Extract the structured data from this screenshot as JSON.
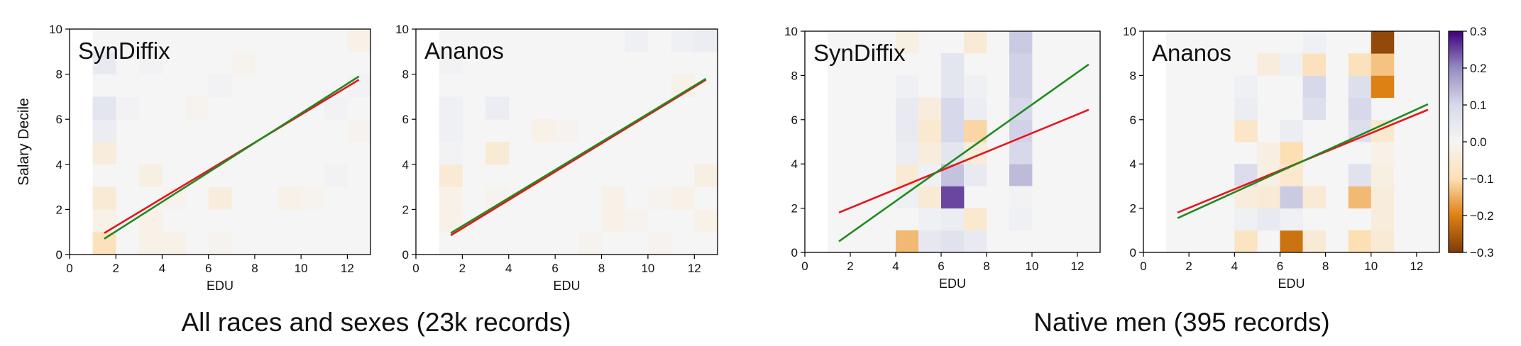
{
  "captions": {
    "left": "All races and sexes (23k records)",
    "right": "Native men (395 records)"
  },
  "colors": {
    "red_line": "#e8141c",
    "green_line": "#1f8a1f",
    "frame": "#000000"
  },
  "colorbar": {
    "cmap": "PuOr (brown=negative, purple=positive)",
    "min": -0.3,
    "max": 0.3,
    "ticks": [
      "0.3",
      "0.2",
      "0.1",
      "0.0",
      "−0.1",
      "−0.2",
      "−0.3"
    ],
    "tick_values": [
      0.3,
      0.2,
      0.1,
      0.0,
      -0.1,
      -0.2,
      -0.3
    ]
  },
  "chart_data": [
    {
      "type": "heatmap",
      "title": "SynDiffix",
      "group": "All races and sexes (23k records)",
      "xlabel": "EDU",
      "ylabel": "Salary Decile",
      "xlim": [
        0,
        13
      ],
      "ylim": [
        0,
        10
      ],
      "xticks": [
        "0",
        "2",
        "4",
        "6",
        "8",
        "10",
        "12"
      ],
      "yticks": [
        "0",
        "2",
        "4",
        "6",
        "8",
        "10"
      ],
      "cell_x_edges": [
        1,
        2,
        3,
        4,
        5,
        6,
        7,
        8,
        9,
        10,
        11,
        12,
        13
      ],
      "cells": [
        {
          "x": 1,
          "y": 0,
          "v": -0.09
        },
        {
          "x": 1,
          "y": 1,
          "v": -0.02
        },
        {
          "x": 1,
          "y": 2,
          "v": -0.05
        },
        {
          "x": 1,
          "y": 4,
          "v": -0.04
        },
        {
          "x": 1,
          "y": 5,
          "v": 0.03
        },
        {
          "x": 1,
          "y": 6,
          "v": 0.06
        },
        {
          "x": 1,
          "y": 8,
          "v": 0.04
        },
        {
          "x": 2,
          "y": 6,
          "v": 0.01
        },
        {
          "x": 3,
          "y": 0,
          "v": -0.02
        },
        {
          "x": 3,
          "y": 1,
          "v": -0.02
        },
        {
          "x": 3,
          "y": 3,
          "v": -0.03
        },
        {
          "x": 3,
          "y": 8,
          "v": 0.01
        },
        {
          "x": 4,
          "y": 0,
          "v": -0.02
        },
        {
          "x": 4,
          "y": 2,
          "v": -0.01
        },
        {
          "x": 5,
          "y": 6,
          "v": -0.01
        },
        {
          "x": 6,
          "y": 0,
          "v": -0.01
        },
        {
          "x": 6,
          "y": 2,
          "v": -0.04
        },
        {
          "x": 6,
          "y": 7,
          "v": 0.01
        },
        {
          "x": 7,
          "y": 8,
          "v": -0.01
        },
        {
          "x": 9,
          "y": 2,
          "v": -0.02
        },
        {
          "x": 10,
          "y": 2,
          "v": -0.01
        },
        {
          "x": 11,
          "y": 6,
          "v": 0.01
        },
        {
          "x": 11,
          "y": 3,
          "v": 0.01
        },
        {
          "x": 12,
          "y": 5,
          "v": -0.01
        },
        {
          "x": 12,
          "y": 9,
          "v": -0.02
        },
        {
          "x": 12,
          "y": 7,
          "v": 0.01
        }
      ],
      "lines": [
        {
          "color": "red",
          "x": [
            1.5,
            12.5
          ],
          "y": [
            0.95,
            7.75
          ]
        },
        {
          "color": "green",
          "x": [
            1.5,
            12.5
          ],
          "y": [
            0.7,
            7.9
          ]
        }
      ]
    },
    {
      "type": "heatmap",
      "title": "Ananos",
      "group": "All races and sexes (23k records)",
      "xlabel": "EDU",
      "ylabel": "",
      "xlim": [
        0,
        13
      ],
      "ylim": [
        0,
        10
      ],
      "xticks": [
        "0",
        "2",
        "4",
        "6",
        "8",
        "10",
        "12"
      ],
      "yticks": [
        "0",
        "2",
        "4",
        "6",
        "8",
        "10"
      ],
      "cells": [
        {
          "x": 1,
          "y": 1,
          "v": -0.02
        },
        {
          "x": 1,
          "y": 2,
          "v": -0.02
        },
        {
          "x": 1,
          "y": 3,
          "v": -0.05
        },
        {
          "x": 1,
          "y": 4,
          "v": 0.01
        },
        {
          "x": 1,
          "y": 5,
          "v": 0.02
        },
        {
          "x": 1,
          "y": 6,
          "v": 0.02
        },
        {
          "x": 1,
          "y": 8,
          "v": 0.01
        },
        {
          "x": 3,
          "y": 4,
          "v": -0.05
        },
        {
          "x": 3,
          "y": 6,
          "v": 0.03
        },
        {
          "x": 3,
          "y": 2,
          "v": -0.01
        },
        {
          "x": 5,
          "y": 5,
          "v": -0.02
        },
        {
          "x": 6,
          "y": 5,
          "v": -0.01
        },
        {
          "x": 7,
          "y": 0,
          "v": -0.01
        },
        {
          "x": 8,
          "y": 1,
          "v": -0.02
        },
        {
          "x": 8,
          "y": 2,
          "v": -0.02
        },
        {
          "x": 9,
          "y": 9,
          "v": 0.02
        },
        {
          "x": 9,
          "y": 1,
          "v": -0.01
        },
        {
          "x": 10,
          "y": 0,
          "v": -0.01
        },
        {
          "x": 10,
          "y": 2,
          "v": -0.01
        },
        {
          "x": 11,
          "y": 7,
          "v": -0.02
        },
        {
          "x": 11,
          "y": 9,
          "v": 0.02
        },
        {
          "x": 11,
          "y": 2,
          "v": -0.02
        },
        {
          "x": 12,
          "y": 9,
          "v": 0.03
        },
        {
          "x": 12,
          "y": 3,
          "v": -0.03
        },
        {
          "x": 12,
          "y": 1,
          "v": -0.02
        }
      ],
      "lines": [
        {
          "color": "red",
          "x": [
            1.5,
            12.5
          ],
          "y": [
            0.85,
            7.75
          ]
        },
        {
          "color": "green",
          "x": [
            1.5,
            12.5
          ],
          "y": [
            0.95,
            7.8
          ]
        }
      ]
    },
    {
      "type": "heatmap",
      "title": "SynDiffix",
      "group": "Native men (395 records)",
      "xlabel": "EDU",
      "ylabel": "",
      "xlim": [
        0,
        13
      ],
      "ylim": [
        0,
        10
      ],
      "xticks": [
        "0",
        "2",
        "4",
        "6",
        "8",
        "10",
        "12"
      ],
      "yticks": [
        "0",
        "2",
        "4",
        "6",
        "8",
        "10"
      ],
      "cells": [
        {
          "x": 4,
          "y": 0,
          "v": -0.14
        },
        {
          "x": 4,
          "y": 3,
          "v": -0.05
        },
        {
          "x": 4,
          "y": 4,
          "v": 0.03
        },
        {
          "x": 4,
          "y": 5,
          "v": 0.04
        },
        {
          "x": 4,
          "y": 6,
          "v": 0.04
        },
        {
          "x": 4,
          "y": 7,
          "v": 0.02
        },
        {
          "x": 4,
          "y": 9,
          "v": -0.03
        },
        {
          "x": 4,
          "y": 2,
          "v": 0.02
        },
        {
          "x": 5,
          "y": 0,
          "v": 0.05
        },
        {
          "x": 5,
          "y": 1,
          "v": 0.02
        },
        {
          "x": 5,
          "y": 2,
          "v": -0.05
        },
        {
          "x": 5,
          "y": 3,
          "v": 0.02
        },
        {
          "x": 5,
          "y": 4,
          "v": -0.04
        },
        {
          "x": 5,
          "y": 5,
          "v": -0.06
        },
        {
          "x": 5,
          "y": 6,
          "v": -0.04
        },
        {
          "x": 6,
          "y": 0,
          "v": 0.07
        },
        {
          "x": 6,
          "y": 1,
          "v": 0.03
        },
        {
          "x": 6,
          "y": 2,
          "v": 0.25
        },
        {
          "x": 6,
          "y": 3,
          "v": 0.13
        },
        {
          "x": 6,
          "y": 4,
          "v": 0.06
        },
        {
          "x": 6,
          "y": 5,
          "v": 0.1
        },
        {
          "x": 6,
          "y": 6,
          "v": 0.1
        },
        {
          "x": 6,
          "y": 7,
          "v": 0.06
        },
        {
          "x": 6,
          "y": 8,
          "v": 0.06
        },
        {
          "x": 7,
          "y": 0,
          "v": 0.04
        },
        {
          "x": 7,
          "y": 1,
          "v": -0.06
        },
        {
          "x": 7,
          "y": 3,
          "v": 0.04
        },
        {
          "x": 7,
          "y": 4,
          "v": -0.04
        },
        {
          "x": 7,
          "y": 5,
          "v": -0.11
        },
        {
          "x": 7,
          "y": 6,
          "v": 0.03
        },
        {
          "x": 7,
          "y": 7,
          "v": 0.02
        },
        {
          "x": 7,
          "y": 9,
          "v": -0.05
        },
        {
          "x": 9,
          "y": 1,
          "v": 0.02
        },
        {
          "x": 9,
          "y": 3,
          "v": 0.14
        },
        {
          "x": 9,
          "y": 4,
          "v": 0.1
        },
        {
          "x": 9,
          "y": 5,
          "v": 0.11
        },
        {
          "x": 9,
          "y": 6,
          "v": 0.1
        },
        {
          "x": 9,
          "y": 7,
          "v": 0.11
        },
        {
          "x": 9,
          "y": 8,
          "v": 0.11
        },
        {
          "x": 9,
          "y": 9,
          "v": 0.12
        },
        {
          "x": 9,
          "y": 2,
          "v": 0.01
        }
      ],
      "lines": [
        {
          "color": "red",
          "x": [
            1.5,
            12.5
          ],
          "y": [
            1.8,
            6.45
          ]
        },
        {
          "color": "green",
          "x": [
            1.5,
            12.5
          ],
          "y": [
            0.5,
            8.5
          ]
        }
      ]
    },
    {
      "type": "heatmap",
      "title": "Ananos",
      "group": "Native men (395 records)",
      "xlabel": "EDU",
      "ylabel": "",
      "xlim": [
        0,
        13
      ],
      "ylim": [
        0,
        10
      ],
      "xticks": [
        "0",
        "2",
        "4",
        "6",
        "8",
        "10",
        "12"
      ],
      "yticks": [
        "0",
        "2",
        "4",
        "6",
        "8",
        "10"
      ],
      "cells": [
        {
          "x": 4,
          "y": 0,
          "v": -0.08
        },
        {
          "x": 4,
          "y": 1,
          "v": 0.02
        },
        {
          "x": 4,
          "y": 2,
          "v": -0.04
        },
        {
          "x": 4,
          "y": 3,
          "v": 0.09
        },
        {
          "x": 4,
          "y": 5,
          "v": -0.07
        },
        {
          "x": 4,
          "y": 6,
          "v": 0.03
        },
        {
          "x": 4,
          "y": 7,
          "v": 0.02
        },
        {
          "x": 5,
          "y": 1,
          "v": 0.04
        },
        {
          "x": 5,
          "y": 2,
          "v": -0.05
        },
        {
          "x": 5,
          "y": 3,
          "v": -0.03
        },
        {
          "x": 5,
          "y": 4,
          "v": -0.03
        },
        {
          "x": 5,
          "y": 8,
          "v": -0.04
        },
        {
          "x": 6,
          "y": 0,
          "v": -0.22
        },
        {
          "x": 6,
          "y": 1,
          "v": 0.02
        },
        {
          "x": 6,
          "y": 2,
          "v": 0.12
        },
        {
          "x": 6,
          "y": 3,
          "v": -0.06
        },
        {
          "x": 6,
          "y": 4,
          "v": -0.1
        },
        {
          "x": 6,
          "y": 5,
          "v": 0.03
        },
        {
          "x": 6,
          "y": 8,
          "v": 0.02
        },
        {
          "x": 7,
          "y": 0,
          "v": -0.05
        },
        {
          "x": 7,
          "y": 2,
          "v": -0.05
        },
        {
          "x": 7,
          "y": 6,
          "v": 0.08
        },
        {
          "x": 7,
          "y": 7,
          "v": 0.1
        },
        {
          "x": 7,
          "y": 8,
          "v": -0.09
        },
        {
          "x": 7,
          "y": 9,
          "v": 0.02
        },
        {
          "x": 9,
          "y": 0,
          "v": -0.1
        },
        {
          "x": 9,
          "y": 2,
          "v": -0.14
        },
        {
          "x": 9,
          "y": 3,
          "v": 0.07
        },
        {
          "x": 9,
          "y": 5,
          "v": 0.08
        },
        {
          "x": 9,
          "y": 6,
          "v": 0.1
        },
        {
          "x": 9,
          "y": 7,
          "v": 0.08
        },
        {
          "x": 9,
          "y": 8,
          "v": -0.09
        },
        {
          "x": 10,
          "y": 0,
          "v": -0.05
        },
        {
          "x": 10,
          "y": 1,
          "v": -0.04
        },
        {
          "x": 10,
          "y": 2,
          "v": -0.04
        },
        {
          "x": 10,
          "y": 3,
          "v": -0.03
        },
        {
          "x": 10,
          "y": 4,
          "v": -0.02
        },
        {
          "x": 10,
          "y": 5,
          "v": -0.06
        },
        {
          "x": 10,
          "y": 7,
          "v": -0.2
        },
        {
          "x": 10,
          "y": 8,
          "v": -0.13
        },
        {
          "x": 10,
          "y": 9,
          "v": -0.28
        }
      ],
      "lines": [
        {
          "color": "red",
          "x": [
            1.5,
            12.5
          ],
          "y": [
            1.8,
            6.45
          ]
        },
        {
          "color": "green",
          "x": [
            1.5,
            12.5
          ],
          "y": [
            1.55,
            6.7
          ]
        }
      ]
    }
  ]
}
